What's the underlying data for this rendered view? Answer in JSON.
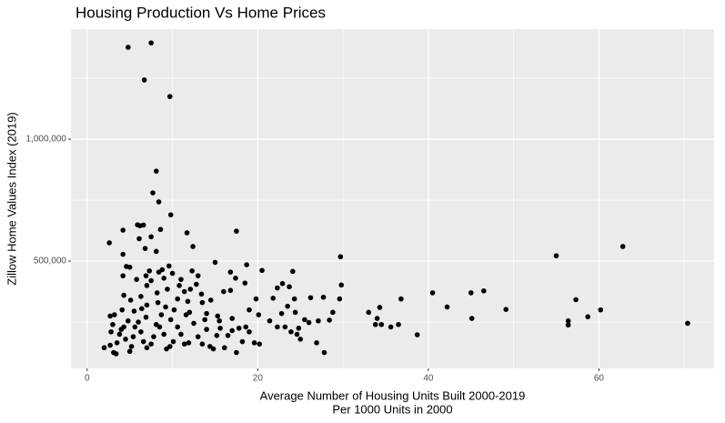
{
  "chart_data": {
    "type": "scatter",
    "title": "Housing Production Vs Home Prices",
    "x_label": [
      "Average Number of Housing Units Built 2000-2019",
      "Per 1000 Units in 2000"
    ],
    "y_label": "Zillow Home Values Index (2019)",
    "color": "#000000",
    "grid": true,
    "xlim": [
      -1.9,
      73.5
    ],
    "xticks": [
      0,
      20,
      40,
      60
    ],
    "x_minor_ticks": [
      10,
      30,
      50,
      70
    ],
    "ylim": [
      60000,
      1451500
    ],
    "yticks": [
      {
        "value": 500000,
        "label": "500,000"
      },
      {
        "value": 1000000,
        "label": "1,000,000"
      }
    ],
    "y_minor_ticks": [
      250000,
      750000,
      1250000
    ],
    "x": [
      4.8,
      7.5,
      6.7,
      9.7,
      8.1,
      7.7,
      8.4,
      9.8,
      5.9,
      6.6,
      6.2,
      11.7,
      17.5,
      4.2,
      8.6,
      2.6,
      7.5,
      6.1,
      12.4,
      6.8,
      8.1,
      4.2,
      55,
      62.8,
      29.7,
      5.0,
      4.6,
      9.6,
      8.8,
      18.7,
      16.8,
      15,
      20.5,
      24.1,
      10,
      8.4,
      7.3,
      6.9,
      9.0,
      11.0,
      13.0,
      12.3,
      17.4,
      18.5,
      5.8,
      4.2,
      7.5,
      10.8,
      12.8,
      29.8,
      22.9,
      23.7,
      22.3,
      16.8,
      16,
      11.4,
      12.1,
      7,
      9.4,
      8.2,
      13.4,
      4.3,
      6.3,
      5.1,
      14.5,
      19.8,
      21.8,
      24.3,
      29.6,
      27.7,
      26.2,
      10.6,
      8.3,
      11.8,
      13.5,
      7.0,
      9.2,
      10.2,
      6.4,
      5.5,
      4.1,
      3.2,
      2.7,
      8.7,
      12.0,
      14.0,
      15.3,
      17,
      19,
      20.1,
      22.8,
      23.5,
      24.4,
      28.8,
      27.1,
      25.5,
      26,
      21.4,
      22.3,
      23.2,
      24.8,
      23.9,
      24.6,
      25,
      26.9,
      27.8,
      28.4,
      33.0,
      34,
      34.3,
      33.8,
      34.5,
      35.6,
      36.8,
      36.5,
      38.7,
      40.5,
      42.2,
      45,
      46.5,
      45.1,
      49.1,
      56.4,
      56.4,
      57.3,
      58.7,
      60.2,
      70.4,
      2.0,
      2.7,
      3.1,
      3.4,
      3.5,
      3.8,
      4.0,
      4.3,
      4.5,
      5,
      5.2,
      5.4,
      5.6,
      6.0,
      6.3,
      6.6,
      7.0,
      7.5,
      7.8,
      8.1,
      8.5,
      9.0,
      9.3,
      9.7,
      10.1,
      10.6,
      11.0,
      11.4,
      11.9,
      12.5,
      13,
      13.5,
      14.0,
      14.4,
      14.8,
      15.2,
      15.6,
      16.1,
      16.5,
      17.0,
      17.5,
      18.2,
      19.0,
      19.6,
      20.2,
      18.6,
      3.0,
      2.8,
      4.8,
      6.9,
      9.8,
      11.6,
      13.8,
      15.5,
      17.8
    ],
    "values": [
      1377000,
      1395000,
      1243000,
      1175000,
      869000,
      780000,
      743000,
      690000,
      649000,
      648000,
      645000,
      616000,
      623000,
      627000,
      630000,
      575000,
      600000,
      592000,
      560000,
      552000,
      540000,
      528000,
      522000,
      560000,
      518000,
      475000,
      478000,
      480000,
      465000,
      485000,
      455000,
      495000,
      462000,
      458000,
      450000,
      455000,
      460000,
      440000,
      430000,
      425000,
      440000,
      460000,
      430000,
      410000,
      425000,
      440000,
      420000,
      400000,
      405000,
      402000,
      408000,
      395000,
      390000,
      380000,
      375000,
      375000,
      385000,
      400000,
      385000,
      370000,
      365000,
      360000,
      355000,
      340000,
      340000,
      345000,
      348000,
      345000,
      345000,
      352000,
      350000,
      345000,
      330000,
      335000,
      330000,
      320000,
      312000,
      300000,
      305000,
      295000,
      300000,
      280000,
      275000,
      280000,
      290000,
      285000,
      275000,
      265000,
      300000,
      280000,
      285000,
      315000,
      290000,
      290000,
      255000,
      260000,
      248000,
      255000,
      230000,
      230000,
      225000,
      210000,
      200000,
      180000,
      165000,
      125000,
      258000,
      290000,
      265000,
      310000,
      240000,
      240000,
      230000,
      345000,
      240000,
      198000,
      370000,
      312000,
      370000,
      378000,
      265000,
      302000,
      255000,
      238000,
      342000,
      272000,
      300000,
      245000,
      145000,
      155000,
      125000,
      120000,
      165000,
      200000,
      220000,
      230000,
      180000,
      130000,
      150000,
      190000,
      230000,
      250000,
      210000,
      170000,
      145000,
      160000,
      190000,
      240000,
      230000,
      200000,
      140000,
      150000,
      170000,
      230000,
      200000,
      160000,
      165000,
      245000,
      190000,
      160000,
      220000,
      150000,
      140000,
      195000,
      225000,
      145000,
      195000,
      215000,
      125000,
      170000,
      210000,
      165000,
      160000,
      230000,
      240000,
      210000,
      255000,
      270000,
      260000,
      280000,
      260000,
      255000,
      225000
    ]
  }
}
